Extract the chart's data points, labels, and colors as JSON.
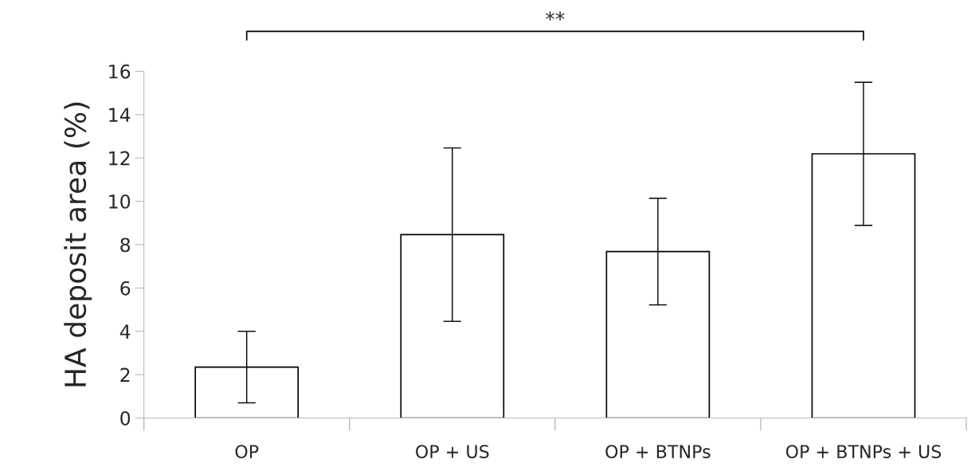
{
  "chart_data": {
    "type": "bar",
    "ylabel": "HA deposit area (%)",
    "categories": [
      "OP",
      "OP + US",
      "OP + BTNPs",
      "OP + BTNPs + US"
    ],
    "values": [
      2.35,
      8.46,
      7.68,
      12.19
    ],
    "errors": [
      1.65,
      4.0,
      2.46,
      3.3
    ],
    "color": "#ffffff",
    "ylim": [
      0,
      16
    ],
    "yticks": [
      0,
      2,
      4,
      6,
      8,
      10,
      12,
      14,
      16
    ],
    "grid": false,
    "legend": false,
    "annotations": [
      "**"
    ]
  }
}
